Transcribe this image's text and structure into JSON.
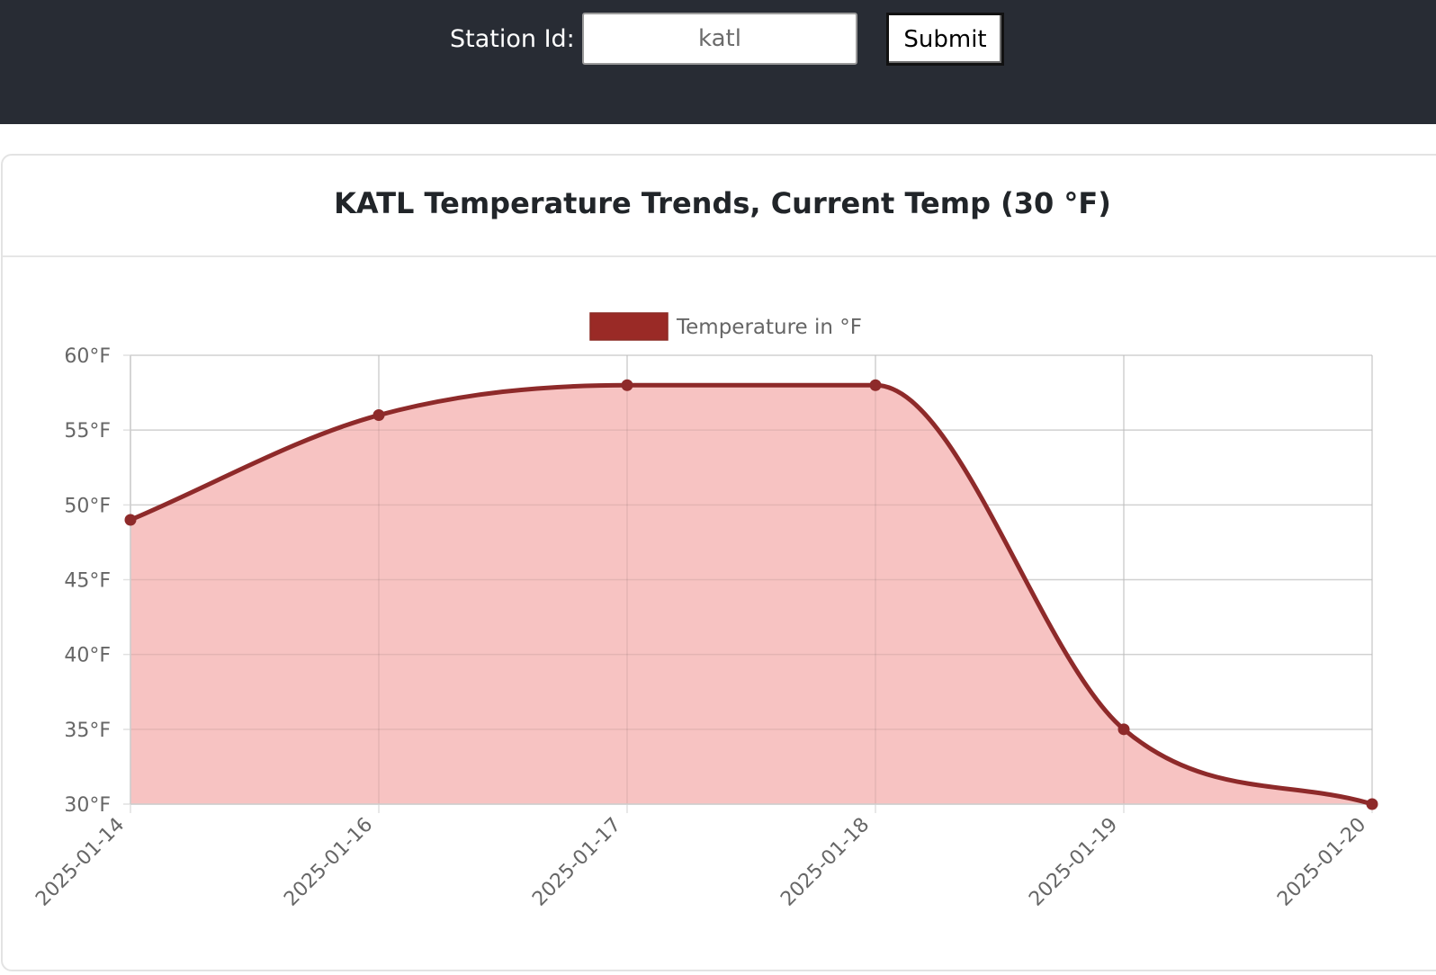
{
  "header": {
    "station_label": "Station Id:",
    "station_value": "katl",
    "submit_label": "Submit"
  },
  "card": {
    "title": "KATL Temperature Trends, Current Temp (30 °F)"
  },
  "colors": {
    "topbar_bg": "#282c34",
    "line": "#8e2a2a",
    "fill": "#f7c0bf",
    "legend_box": "#9a2a26"
  },
  "chart_data": {
    "type": "area",
    "categories": [
      "2025-01-14",
      "2025-01-16",
      "2025-01-17",
      "2025-01-18",
      "2025-01-19",
      "2025-01-20"
    ],
    "series": [
      {
        "name": "Temperature in °F",
        "values": [
          49,
          56,
          58,
          58,
          35,
          30
        ]
      }
    ],
    "y_ticks": [
      "30°F",
      "35°F",
      "40°F",
      "45°F",
      "50°F",
      "55°F",
      "60°F"
    ],
    "ylim": [
      30,
      60
    ],
    "grid": true,
    "legend_position": "top"
  }
}
